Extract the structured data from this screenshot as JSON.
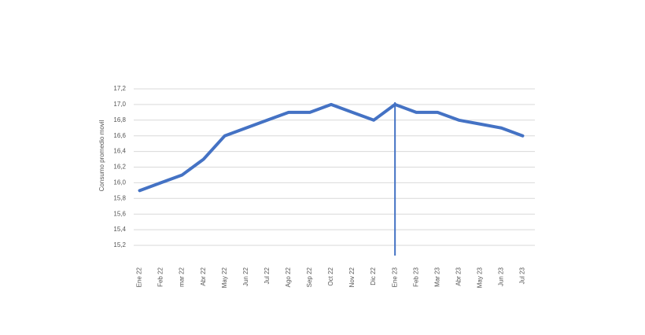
{
  "chart_data": {
    "type": "line",
    "y_label": "Consumo promedio movil",
    "categories": [
      "Ene 22",
      "Feb 22",
      "mar 22",
      "Abr 22",
      "May 22",
      "Jun 22",
      "Jul 22",
      "Ago 22",
      "Sep 22",
      "Oct 22",
      "Nov 22",
      "Dic 22",
      "Ene 23",
      "Feb 23",
      "Mar 23",
      "Abr 23",
      "May 23",
      "Jun 23",
      "Jul 23"
    ],
    "values": [
      15.9,
      16.0,
      16.1,
      16.3,
      16.6,
      16.7,
      16.8,
      16.9,
      16.9,
      17.0,
      16.9,
      16.8,
      17.0,
      16.9,
      16.9,
      16.8,
      16.75,
      16.7,
      16.6
    ],
    "color": "#4472c4",
    "ylim": [
      15.2,
      17.2
    ],
    "yticks": [
      {
        "value": 15.2,
        "label": "15,2"
      },
      {
        "value": 15.4,
        "label": "15,4"
      },
      {
        "value": 15.6,
        "label": "15,6"
      },
      {
        "value": 15.8,
        "label": "15,8"
      },
      {
        "value": 16.0,
        "label": "16,0"
      },
      {
        "value": 16.2,
        "label": "16,2"
      },
      {
        "value": 16.4,
        "label": "16,4"
      },
      {
        "value": 16.6,
        "label": "16,6"
      },
      {
        "value": 16.8,
        "label": "16,8"
      },
      {
        "value": 17.0,
        "label": "17,0"
      },
      {
        "value": 17.2,
        "label": "17,2"
      }
    ],
    "grid": true
  }
}
